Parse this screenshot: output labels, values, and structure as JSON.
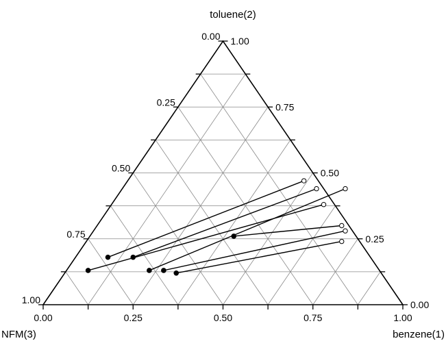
{
  "chart_data": {
    "type": "ternary",
    "components": {
      "right": "benzene(1)",
      "top": "toluene(2)",
      "left": "NFM(3)"
    },
    "grid_step": 0.125,
    "tick_step": 0.25,
    "bottom_tick_labels": [
      "0.00",
      "0.25",
      "0.50",
      "0.75",
      "1.00"
    ],
    "left_tick_labels": [
      "0.00",
      "0.25",
      "0.50",
      "0.75",
      "1.00"
    ],
    "right_tick_labels": [
      "1.00",
      "0.75",
      "0.50",
      "0.25",
      "0.00"
    ],
    "tie_lines": [
      {
        "raffinate": {
          "x1": 0.49,
          "x2": 0.47
        },
        "extract": {
          "x1": 0.09,
          "x2": 0.18
        }
      },
      {
        "raffinate": {
          "x1": 0.54,
          "x2": 0.44
        },
        "extract": {
          "x1": 0.16,
          "x2": 0.18
        }
      },
      {
        "raffinate": {
          "x1": 0.59,
          "x2": 0.38
        },
        "extract": {
          "x1": 0.06,
          "x2": 0.13
        }
      },
      {
        "raffinate": {
          "x1": 0.62,
          "x2": 0.44
        },
        "extract": {
          "x1": 0.23,
          "x2": 0.13
        }
      },
      {
        "raffinate": {
          "x1": 0.68,
          "x2": 0.3
        },
        "extract": {
          "x1": 0.4,
          "x2": 0.26
        }
      },
      {
        "raffinate": {
          "x1": 0.7,
          "x2": 0.28
        },
        "extract": {
          "x1": 0.27,
          "x2": 0.13
        }
      },
      {
        "raffinate": {
          "x1": 0.71,
          "x2": 0.24
        },
        "extract": {
          "x1": 0.31,
          "x2": 0.12
        }
      }
    ]
  }
}
